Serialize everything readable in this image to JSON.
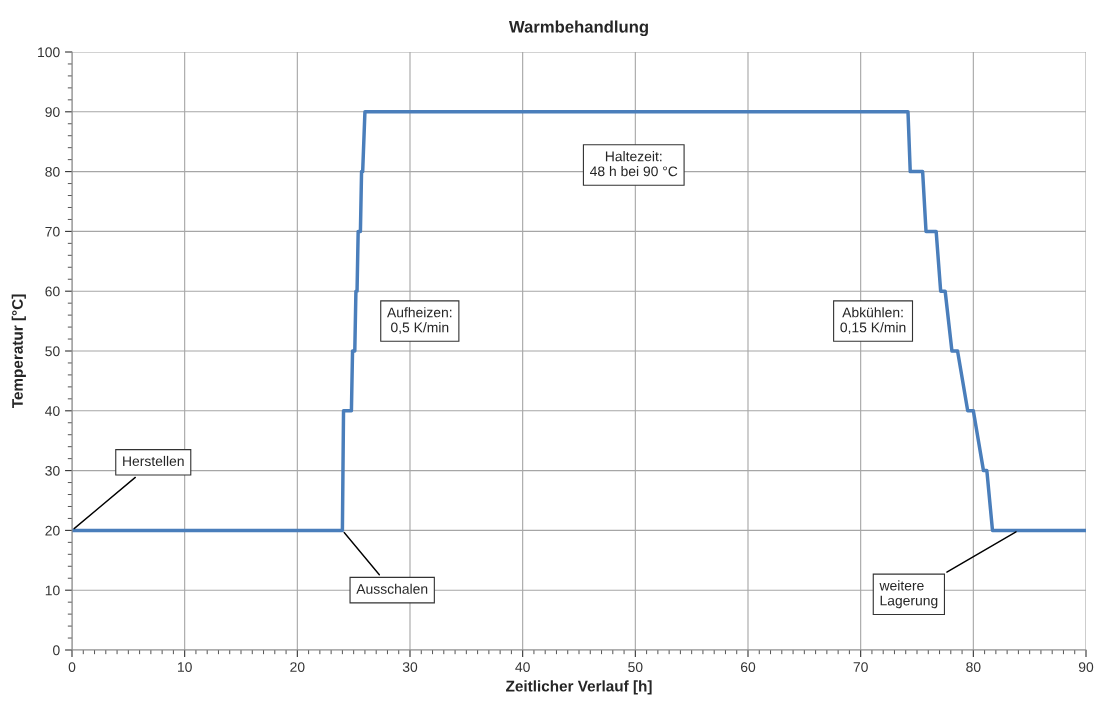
{
  "chart_data": {
    "type": "line",
    "title": "Warmbehandlung",
    "xlabel": "Zeitlicher Verlauf [h]",
    "ylabel": "Temperatur [°C]",
    "series": [
      {
        "color": "#4a7ebb",
        "x": [
          0,
          24.0,
          24.1,
          24.8,
          24.9,
          25.1,
          25.2,
          25.3,
          25.4,
          25.6,
          25.7,
          25.8,
          26.0,
          74.2,
          74.4,
          75.5,
          75.8,
          76.7,
          77.1,
          77.5,
          78.1,
          78.6,
          79.5,
          80.0,
          80.9,
          81.2,
          81.7,
          90
        ],
        "values": [
          20,
          20,
          40,
          40,
          50,
          50,
          60,
          60,
          70,
          70,
          80,
          80,
          90,
          90,
          80,
          80,
          70,
          70,
          60,
          60,
          50,
          50,
          40,
          40,
          30,
          30,
          20,
          20
        ]
      }
    ],
    "xlim": [
      0,
      90
    ],
    "xticks": [
      0,
      10,
      20,
      30,
      40,
      50,
      60,
      70,
      80,
      90
    ],
    "ylim": [
      0,
      100
    ],
    "yticks": [
      0,
      10,
      20,
      30,
      40,
      50,
      60,
      70,
      80,
      90,
      100
    ],
    "grid": true,
    "legend": false,
    "marker": "none",
    "line_style": "solid",
    "annotations": [
      {
        "text": "Herstellen",
        "x": 0,
        "y": 20
      },
      {
        "text": "Ausschalen",
        "x": 24,
        "y": 20
      },
      {
        "text": "weitere\nLagerung",
        "x": 84,
        "y": 20
      },
      "Haltezeit:\n48 h bei 90 °C",
      "Aufheizen:\n0,5 K/min",
      "Abkühlen:\n0,15 K/min"
    ]
  }
}
